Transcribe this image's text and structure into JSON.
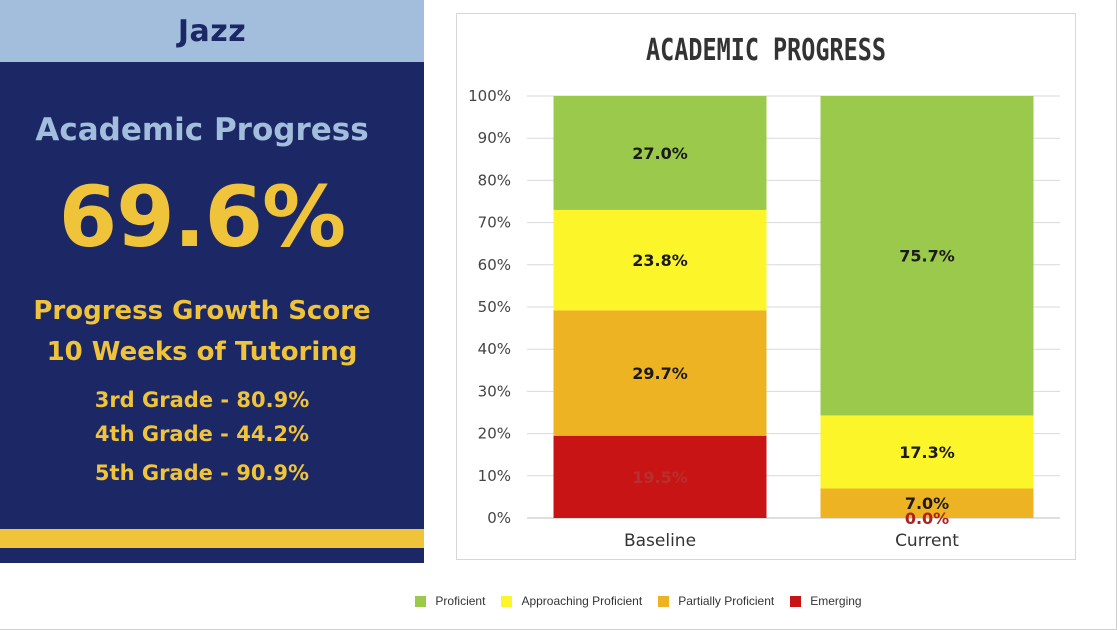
{
  "panel": {
    "team": "Jazz",
    "heading": "Academic Progress",
    "score": "69.6%",
    "growth_line1": "Progress Growth Score",
    "growth_line2": "10 Weeks of Tutoring",
    "grades": [
      "3rd Grade - 80.9%",
      "4th Grade - 44.2%",
      "5th Grade - 90.9%"
    ]
  },
  "colors": {
    "panel_bg": "#1b2865",
    "team_bar": "#a3bedd",
    "accent_gold": "#efc33a"
  },
  "chart_data": {
    "type": "bar",
    "stacked": true,
    "title": "ACADEMIC PROGRESS",
    "categories": [
      "Baseline",
      "Current"
    ],
    "ylim": [
      0,
      100
    ],
    "yticks": [
      "0%",
      "10%",
      "20%",
      "30%",
      "40%",
      "50%",
      "60%",
      "70%",
      "80%",
      "90%",
      "100%"
    ],
    "grid": true,
    "legend_position": "bottom",
    "series": [
      {
        "name": "Emerging",
        "color": "#c81414",
        "values": [
          19.5,
          0.0
        ],
        "labels": [
          "19.5%",
          "0.0%"
        ]
      },
      {
        "name": "Partially Proficient",
        "color": "#edb322",
        "values": [
          29.7,
          7.0
        ],
        "labels": [
          "29.7%",
          "7.0%"
        ]
      },
      {
        "name": "Approaching Proficient",
        "color": "#fbf52a",
        "values": [
          23.8,
          17.3
        ],
        "labels": [
          "23.8%",
          "17.3%"
        ]
      },
      {
        "name": "Proficient",
        "color": "#9bc94b",
        "values": [
          27.0,
          75.7
        ],
        "labels": [
          "27.0%",
          "75.7%"
        ]
      }
    ],
    "legend_order": [
      "Proficient",
      "Approaching Proficient",
      "Partially Proficient",
      "Emerging"
    ]
  }
}
